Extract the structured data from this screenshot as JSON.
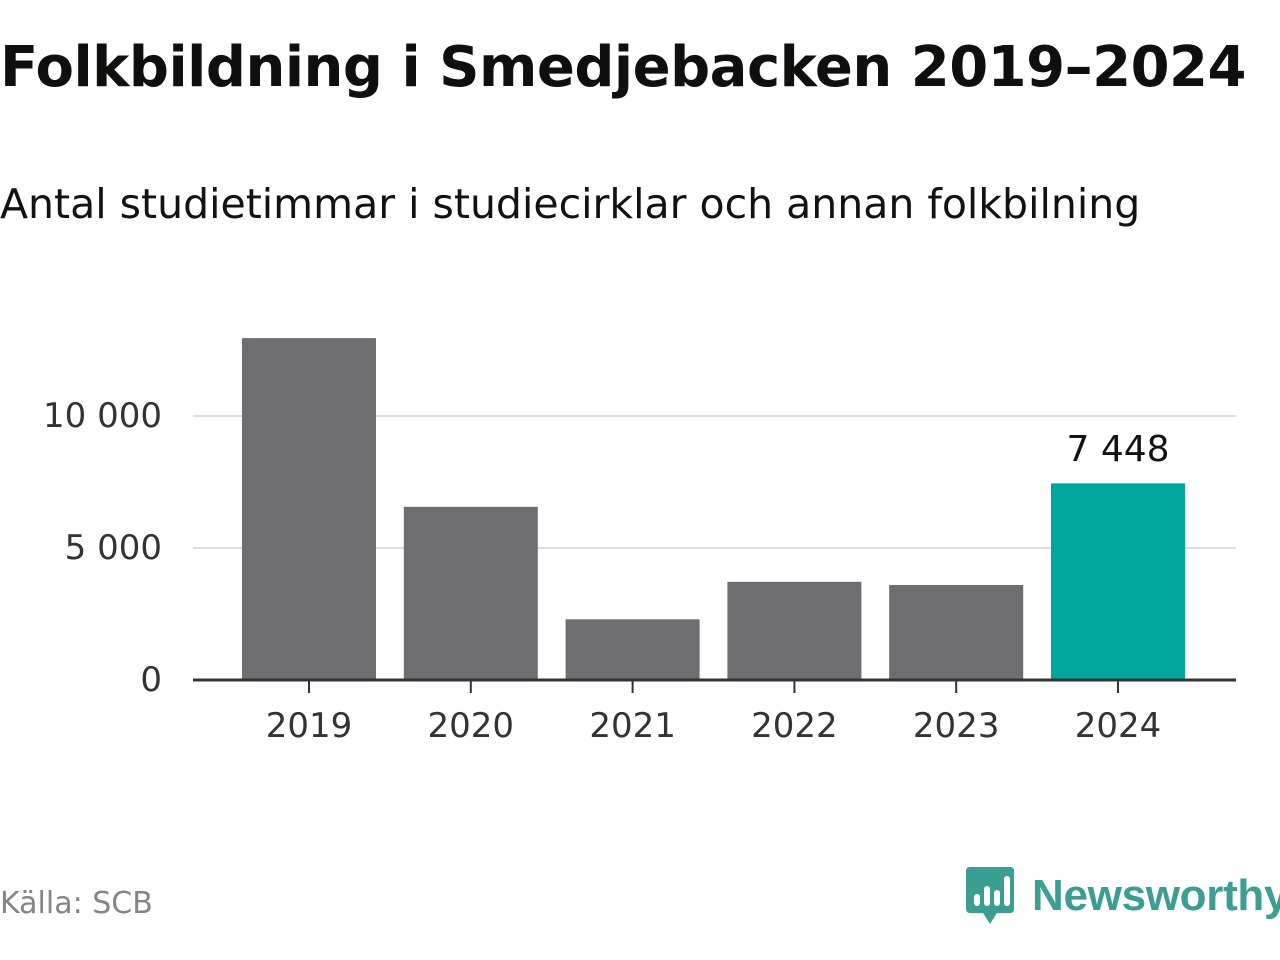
{
  "header": {
    "title": "Folkbildning i Smedjebacken 2019–2024",
    "subtitle": "Antal studietimmar i studiecirklar och annan folkbilning"
  },
  "footer": {
    "source": "Källa: SCB",
    "brand": "Newsworthy"
  },
  "colors": {
    "bar": "#6e6d72",
    "highlight": "#00a59b",
    "grid": "#dddddd",
    "axis": "#333333",
    "brand": "#3a9e93"
  },
  "chart_data": {
    "type": "bar",
    "title": "Folkbildning i Smedjebacken 2019–2024",
    "subtitle": "Antal studietimmar i studiecirklar och annan folkbilning",
    "categories": [
      "2019",
      "2020",
      "2021",
      "2022",
      "2023",
      "2024"
    ],
    "values": [
      12950,
      6560,
      2300,
      3720,
      3600,
      7448
    ],
    "highlight_index": 5,
    "data_labels": [
      {
        "index": 5,
        "text": "7 448"
      }
    ],
    "xlabel": "",
    "ylabel": "",
    "ylim": [
      0,
      13000
    ],
    "yticks": [
      {
        "value": 0,
        "label": "0"
      },
      {
        "value": 5000,
        "label": "5 000"
      },
      {
        "value": 10000,
        "label": "10 000"
      }
    ],
    "grid": true,
    "legend": "none"
  }
}
